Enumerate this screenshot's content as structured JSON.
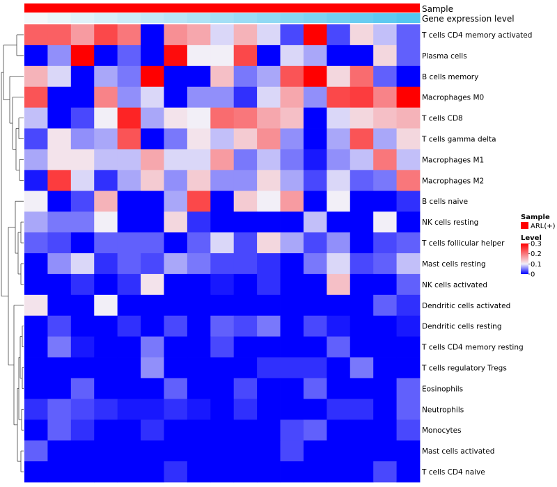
{
  "chart_data": {
    "type": "heatmap",
    "annotations": {
      "sample_label": "Sample",
      "expression_label": "Gene expression level",
      "sample_color": "#ff0000",
      "expression_gradient": [
        "#f4f8fb",
        "#54c6f0"
      ]
    },
    "rows": [
      "T cells CD4 memory activated",
      "Plasma cells",
      "B cells memory",
      "Macrophages M0",
      "T cells CD8",
      "T cells gamma delta",
      "Macrophages M1",
      "Macrophages M2",
      "B cells naive",
      "NK cells resting",
      "T cells follicular helper",
      "Mast cells resting",
      "NK cells activated",
      "Dendritic cells activated",
      "Dendritic cells resting",
      "T cells CD4 memory resting",
      "T cells regulatory  Tregs",
      "Eosinophils",
      "Neutrophils",
      "Monocytes",
      "Mast cells activated",
      "T cells CD4 naive"
    ],
    "values": [
      [
        0.22,
        0.22,
        0.17,
        0.24,
        0.2,
        0.0,
        0.18,
        0.16,
        0.09,
        0.15,
        0.09,
        0.03,
        0.3,
        0.03,
        0.12,
        0.08,
        0.04
      ],
      [
        0.0,
        0.06,
        0.3,
        0.0,
        0.04,
        0.0,
        0.29,
        0.1,
        0.1,
        0.24,
        0.0,
        0.09,
        0.07,
        0.0,
        0.0,
        0.12,
        0.04
      ],
      [
        0.15,
        0.09,
        0.0,
        0.07,
        0.05,
        0.3,
        0.0,
        0.0,
        0.14,
        0.05,
        0.07,
        0.23,
        0.3,
        0.12,
        0.21,
        0.04,
        0.0
      ],
      [
        0.23,
        0.0,
        0.0,
        0.19,
        0.06,
        0.09,
        0.0,
        0.06,
        0.06,
        0.02,
        0.09,
        0.16,
        0.06,
        0.24,
        0.25,
        0.19,
        0.3
      ],
      [
        0.08,
        0.0,
        0.03,
        0.1,
        0.27,
        0.07,
        0.11,
        0.1,
        0.21,
        0.2,
        0.16,
        0.14,
        0.0,
        0.09,
        0.12,
        0.14,
        0.15
      ],
      [
        0.03,
        0.11,
        0.06,
        0.07,
        0.23,
        0.0,
        0.05,
        0.11,
        0.08,
        0.13,
        0.18,
        0.06,
        0.0,
        0.07,
        0.23,
        0.07,
        0.12
      ],
      [
        0.07,
        0.11,
        0.11,
        0.08,
        0.08,
        0.16,
        0.09,
        0.09,
        0.17,
        0.05,
        0.08,
        0.05,
        0.01,
        0.06,
        0.08,
        0.2,
        0.08
      ],
      [
        0.01,
        0.25,
        0.09,
        0.02,
        0.07,
        0.13,
        0.06,
        0.13,
        0.06,
        0.06,
        0.12,
        0.07,
        0.03,
        0.09,
        0.04,
        0.05,
        0.2
      ],
      [
        0.1,
        0.0,
        0.03,
        0.15,
        0.0,
        0.0,
        0.07,
        0.24,
        0.0,
        0.13,
        0.1,
        0.17,
        0.0,
        0.1,
        0.0,
        0.0,
        0.02
      ],
      [
        0.07,
        0.05,
        0.05,
        0.1,
        0.0,
        0.0,
        0.12,
        0.02,
        0.0,
        0.0,
        0.0,
        0.0,
        0.08,
        0.0,
        0.0,
        0.1,
        0.0
      ],
      [
        0.04,
        0.03,
        0.0,
        0.04,
        0.04,
        0.04,
        0.0,
        0.04,
        0.09,
        0.03,
        0.12,
        0.07,
        0.03,
        0.06,
        0.0,
        0.03,
        0.04
      ],
      [
        0.0,
        0.06,
        0.09,
        0.02,
        0.04,
        0.03,
        0.07,
        0.05,
        0.03,
        0.03,
        0.02,
        0.0,
        0.05,
        0.09,
        0.03,
        0.04,
        0.08
      ],
      [
        0.0,
        0.0,
        0.02,
        0.0,
        0.02,
        0.11,
        0.0,
        0.0,
        0.01,
        0.0,
        0.02,
        0.0,
        0.0,
        0.14,
        0.0,
        0.0,
        0.04
      ],
      [
        0.11,
        0.0,
        0.0,
        0.1,
        0.0,
        0.0,
        0.0,
        0.0,
        0.0,
        0.0,
        0.0,
        0.0,
        0.0,
        0.0,
        0.0,
        0.04,
        0.02
      ],
      [
        0.0,
        0.03,
        0.0,
        0.0,
        0.02,
        0.0,
        0.03,
        0.0,
        0.04,
        0.03,
        0.05,
        0.0,
        0.03,
        0.01,
        0.0,
        0.0,
        0.01
      ],
      [
        0.0,
        0.05,
        0.01,
        0.0,
        0.0,
        0.05,
        0.0,
        0.0,
        0.03,
        0.0,
        0.0,
        0.0,
        0.0,
        0.04,
        0.0,
        0.0,
        0.0
      ],
      [
        0.0,
        0.0,
        0.0,
        0.0,
        0.0,
        0.06,
        0.0,
        0.0,
        0.0,
        0.0,
        0.02,
        0.02,
        0.02,
        0.0,
        0.05,
        0.0,
        0.0
      ],
      [
        0.0,
        0.0,
        0.04,
        0.0,
        0.0,
        0.0,
        0.04,
        0.0,
        0.0,
        0.03,
        0.0,
        0.0,
        0.04,
        0.0,
        0.0,
        0.0,
        0.04
      ],
      [
        0.02,
        0.04,
        0.03,
        0.02,
        0.01,
        0.01,
        0.02,
        0.01,
        0.0,
        0.02,
        0.0,
        0.0,
        0.0,
        0.02,
        0.02,
        0.0,
        0.04
      ],
      [
        0.0,
        0.04,
        0.02,
        0.0,
        0.0,
        0.02,
        0.0,
        0.0,
        0.0,
        0.0,
        0.0,
        0.03,
        0.04,
        0.0,
        0.0,
        0.0,
        0.03
      ],
      [
        0.04,
        0.0,
        0.0,
        0.0,
        0.0,
        0.0,
        0.0,
        0.0,
        0.0,
        0.0,
        0.0,
        0.03,
        0.0,
        0.0,
        0.0,
        0.0,
        0.0
      ],
      [
        0.0,
        0.0,
        0.0,
        0.0,
        0.0,
        0.0,
        0.02,
        0.0,
        0.0,
        0.0,
        0.0,
        0.0,
        0.0,
        0.0,
        0.0,
        0.03,
        0.0
      ]
    ],
    "color_scale": {
      "min": 0,
      "mid": 0.1,
      "max": 0.3,
      "low_color": "#0000ff",
      "mid_color": "#f2eff7",
      "high_color": "#ff0000"
    },
    "legend": {
      "sample_title": "Sample",
      "sample_entry": "ARL(+)",
      "level_title": "Level",
      "level_ticks": [
        "0.3",
        "0.2",
        "0.1",
        "0"
      ],
      "level_tick_values": [
        0.3,
        0.2,
        0.1,
        0
      ]
    }
  }
}
